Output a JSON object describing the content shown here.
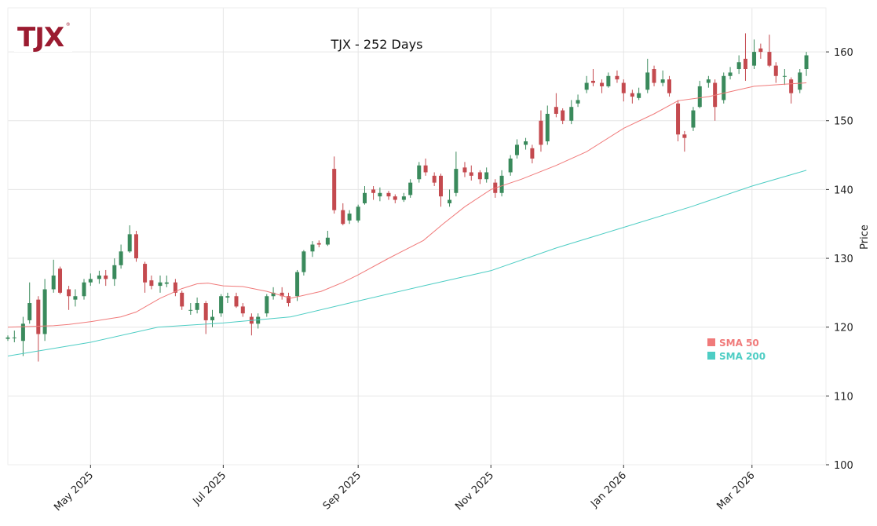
{
  "logo": {
    "text": "TJX",
    "mark": "®",
    "color": "#9b1b30"
  },
  "chart_data": {
    "type": "candlestick",
    "title": "TJX - 252 Days",
    "xlabel": "",
    "ylabel": "Price",
    "ylim": [
      100,
      166.4
    ],
    "xlim": [
      "2025-03-24",
      "2026-04-04"
    ],
    "yticks": [
      100,
      110,
      120,
      130,
      140,
      150,
      160
    ],
    "xticks": [
      {
        "date": "2025-05-01",
        "label": "May 2025"
      },
      {
        "date": "2025-07-01",
        "label": "Jul 2025"
      },
      {
        "date": "2025-09-01",
        "label": "Sep 2025"
      },
      {
        "date": "2025-11-01",
        "label": "Nov 2025"
      },
      {
        "date": "2026-01-01",
        "label": "Jan 2026"
      },
      {
        "date": "2026-03-01",
        "label": "Mar 2026"
      }
    ],
    "grid": true,
    "legend_placement": "lower-right",
    "colors": {
      "up": "#3a8a5c",
      "down": "#c44a4f",
      "sma50": "#f07a7a",
      "sma200": "#4ecdc4",
      "grid": "#e6e6e6"
    },
    "candles_fields": [
      "date",
      "open",
      "high",
      "low",
      "close"
    ],
    "candles": [
      [
        "2025-03-24",
        118.3,
        118.8,
        118,
        118.5
      ],
      [
        "2025-03-27",
        118.5,
        119.5,
        117.8,
        118.5
      ],
      [
        "2025-03-31",
        118,
        121.5,
        115.8,
        120.5
      ],
      [
        "2025-04-03",
        121,
        126.5,
        120.5,
        123.5
      ],
      [
        "2025-04-07",
        124,
        124.5,
        115,
        119
      ],
      [
        "2025-04-10",
        119,
        127,
        118,
        125.5
      ],
      [
        "2025-04-14",
        125.5,
        129.8,
        125,
        127.5
      ],
      [
        "2025-04-17",
        128.5,
        128.8,
        124.8,
        125
      ],
      [
        "2025-04-21",
        125.5,
        126,
        122.5,
        124.5
      ],
      [
        "2025-04-24",
        124,
        125.5,
        123,
        124.5
      ],
      [
        "2025-04-28",
        124.5,
        127,
        124,
        126.5
      ],
      [
        "2025-05-01",
        126.5,
        127.8,
        126,
        127
      ],
      [
        "2025-05-05",
        127,
        128.2,
        126.3,
        127.5
      ],
      [
        "2025-05-08",
        127.5,
        128.3,
        126,
        127
      ],
      [
        "2025-05-12",
        127,
        130,
        126,
        129
      ],
      [
        "2025-05-15",
        129,
        132,
        128.5,
        131
      ],
      [
        "2025-05-19",
        131,
        134.8,
        130.8,
        133.5
      ],
      [
        "2025-05-22",
        133.5,
        134,
        129.5,
        130
      ],
      [
        "2025-05-26",
        129.2,
        129.5,
        125,
        126.5
      ],
      [
        "2025-05-29",
        126.8,
        127.5,
        125.5,
        126
      ],
      [
        "2025-06-02",
        126,
        127.5,
        125,
        126.5
      ],
      [
        "2025-06-05",
        126.3,
        127.5,
        125.8,
        126.5
      ],
      [
        "2025-06-09",
        126.5,
        127,
        124.5,
        125
      ],
      [
        "2025-06-12",
        125,
        125.3,
        122.5,
        123
      ],
      [
        "2025-06-16",
        122.5,
        123.5,
        121.8,
        122.5
      ],
      [
        "2025-06-19",
        122.5,
        124.3,
        122,
        123.5
      ],
      [
        "2025-06-23",
        123.5,
        123.8,
        119,
        121
      ],
      [
        "2025-06-26",
        121,
        122.5,
        120,
        121.5
      ],
      [
        "2025-06-30",
        122,
        124.8,
        121.5,
        124.5
      ],
      [
        "2025-07-03",
        124.3,
        125,
        123.5,
        124.5
      ],
      [
        "2025-07-07",
        124.5,
        125,
        122.8,
        123
      ],
      [
        "2025-07-10",
        123,
        123.5,
        121.5,
        122
      ],
      [
        "2025-07-14",
        121.5,
        122,
        118.8,
        120.5
      ],
      [
        "2025-07-17",
        120.5,
        122,
        119.8,
        121.5
      ],
      [
        "2025-07-21",
        122,
        124.8,
        121.5,
        124.5
      ],
      [
        "2025-07-24",
        124.5,
        125.8,
        124,
        125
      ],
      [
        "2025-07-28",
        125,
        125.8,
        124,
        124.5
      ],
      [
        "2025-07-31",
        124.5,
        125,
        123,
        123.5
      ],
      [
        "2025-08-04",
        124.5,
        128.3,
        123.8,
        128
      ],
      [
        "2025-08-07",
        128,
        131.2,
        127.5,
        131
      ],
      [
        "2025-08-11",
        131,
        132.5,
        130.2,
        132
      ],
      [
        "2025-08-14",
        132.2,
        132.6,
        131.6,
        132
      ],
      [
        "2025-08-18",
        132,
        134,
        131.8,
        133
      ],
      [
        "2025-08-21",
        143,
        144.8,
        136.5,
        137
      ],
      [
        "2025-08-25",
        137,
        138,
        134.8,
        135
      ],
      [
        "2025-08-28",
        135.5,
        137,
        135,
        136.5
      ],
      [
        "2025-09-01",
        135.5,
        137.8,
        135.2,
        137.5
      ],
      [
        "2025-09-04",
        138,
        140.5,
        137.8,
        139.5
      ],
      [
        "2025-09-08",
        140,
        140.5,
        138.5,
        139.5
      ],
      [
        "2025-09-11",
        139,
        140.3,
        138.3,
        139.5
      ],
      [
        "2025-09-15",
        139.5,
        139.8,
        138.5,
        139
      ],
      [
        "2025-09-18",
        139,
        139.3,
        138,
        138.5
      ],
      [
        "2025-09-22",
        138.5,
        139.5,
        138.2,
        139
      ],
      [
        "2025-09-25",
        139.2,
        141.5,
        138.8,
        141
      ],
      [
        "2025-09-29",
        141.5,
        144,
        141,
        143.5
      ],
      [
        "2025-10-02",
        143.5,
        144.5,
        142,
        142.5
      ],
      [
        "2025-10-06",
        142,
        142.5,
        140.5,
        141
      ],
      [
        "2025-10-09",
        142,
        142.3,
        137.5,
        139
      ],
      [
        "2025-10-13",
        138,
        140,
        137.5,
        138.5
      ],
      [
        "2025-10-16",
        139.5,
        145.5,
        139,
        143
      ],
      [
        "2025-10-20",
        143.2,
        144,
        141.8,
        142.5
      ],
      [
        "2025-10-23",
        142.5,
        143.5,
        141.3,
        142
      ],
      [
        "2025-10-27",
        142.5,
        142.8,
        140.8,
        141.5
      ],
      [
        "2025-10-30",
        141.5,
        143.2,
        141,
        142.5
      ],
      [
        "2025-11-03",
        141,
        141.5,
        138.8,
        139.5
      ],
      [
        "2025-11-06",
        139.5,
        142.8,
        139,
        142
      ],
      [
        "2025-11-10",
        142.5,
        145,
        142,
        144.5
      ],
      [
        "2025-11-13",
        145,
        147.3,
        144.5,
        146.5
      ],
      [
        "2025-11-17",
        146.5,
        147.5,
        145.8,
        147
      ],
      [
        "2025-11-20",
        146,
        146.5,
        143.8,
        144.5
      ],
      [
        "2025-11-24",
        150,
        151.5,
        145.5,
        146.5
      ],
      [
        "2025-11-27",
        147,
        152.2,
        146.5,
        151
      ],
      [
        "2025-12-01",
        152,
        154,
        150.5,
        151
      ],
      [
        "2025-12-04",
        151.5,
        151.8,
        149.5,
        150
      ],
      [
        "2025-12-08",
        150,
        153,
        149.5,
        152
      ],
      [
        "2025-12-11",
        152.5,
        153.8,
        152,
        153
      ],
      [
        "2025-12-15",
        154.5,
        156.5,
        154,
        155.5
      ],
      [
        "2025-12-18",
        155.8,
        157.5,
        155,
        155.5
      ],
      [
        "2025-12-22",
        155.5,
        156,
        154,
        155
      ],
      [
        "2025-12-25",
        155,
        157,
        154.8,
        156.5
      ],
      [
        "2025-12-29",
        156.5,
        157.3,
        155.5,
        156
      ],
      [
        "2026-01-01",
        155.5,
        156,
        152.8,
        154
      ],
      [
        "2026-01-05",
        154,
        154.5,
        152.5,
        153.5
      ],
      [
        "2026-01-08",
        153.3,
        154.8,
        153,
        154
      ],
      [
        "2026-01-12",
        154.5,
        159,
        154,
        157
      ],
      [
        "2026-01-15",
        157.5,
        158,
        155,
        155.5
      ],
      [
        "2026-01-19",
        155.5,
        157.3,
        155,
        156
      ],
      [
        "2026-01-22",
        156,
        156.5,
        153.5,
        154
      ],
      [
        "2026-01-26",
        152.5,
        153,
        147,
        148
      ],
      [
        "2026-01-29",
        148,
        148.5,
        145.5,
        147.5
      ],
      [
        "2026-02-02",
        149,
        152,
        148.5,
        151.5
      ],
      [
        "2026-02-05",
        152,
        155.8,
        151.8,
        155
      ],
      [
        "2026-02-09",
        155.5,
        156.5,
        154.8,
        156
      ],
      [
        "2026-02-12",
        155.5,
        156,
        150,
        152
      ],
      [
        "2026-02-16",
        153,
        157,
        152.5,
        156.5
      ],
      [
        "2026-02-19",
        156.5,
        157.8,
        156,
        157
      ],
      [
        "2026-02-23",
        157.5,
        159.5,
        156.8,
        158.5
      ],
      [
        "2026-02-26",
        159,
        162.7,
        155.8,
        157.5
      ],
      [
        "2026-03-02",
        158,
        161.8,
        157.5,
        160
      ],
      [
        "2026-03-05",
        160.5,
        161.2,
        159,
        160
      ],
      [
        "2026-03-09",
        160,
        162.5,
        157.8,
        158
      ],
      [
        "2026-03-12",
        158,
        158.5,
        155.5,
        156.5
      ],
      [
        "2026-03-16",
        156.5,
        157.5,
        155.2,
        156.5
      ],
      [
        "2026-03-19",
        156,
        156.3,
        152.5,
        154
      ],
      [
        "2026-03-23",
        154.5,
        157.5,
        154,
        157
      ],
      [
        "2026-03-26",
        157.5,
        160,
        156.5,
        159.5
      ]
    ],
    "series": [
      {
        "name": "SMA 50",
        "color": "#f07a7a",
        "points": [
          [
            "2025-03-24",
            120
          ],
          [
            "2025-04-14",
            120.2
          ],
          [
            "2025-04-21",
            120.4
          ],
          [
            "2025-05-01",
            120.8
          ],
          [
            "2025-05-15",
            121.5
          ],
          [
            "2025-05-22",
            122.2
          ],
          [
            "2025-06-02",
            124.2
          ],
          [
            "2025-06-12",
            125.6
          ],
          [
            "2025-06-19",
            126.3
          ],
          [
            "2025-06-24",
            126.4
          ],
          [
            "2025-07-01",
            126
          ],
          [
            "2025-07-10",
            125.9
          ],
          [
            "2025-07-21",
            125.2
          ],
          [
            "2025-08-01",
            124.2
          ],
          [
            "2025-08-15",
            125.2
          ],
          [
            "2025-08-25",
            126.5
          ],
          [
            "2025-09-01",
            127.6
          ],
          [
            "2025-09-15",
            130
          ],
          [
            "2025-10-01",
            132.6
          ],
          [
            "2025-10-10",
            135
          ],
          [
            "2025-10-20",
            137.5
          ],
          [
            "2025-11-01",
            140
          ],
          [
            "2025-11-15",
            141.5
          ],
          [
            "2025-12-01",
            143.5
          ],
          [
            "2025-12-15",
            145.5
          ],
          [
            "2026-01-01",
            148.9
          ],
          [
            "2026-01-15",
            151
          ],
          [
            "2026-01-26",
            152.9
          ],
          [
            "2026-02-09",
            153.5
          ],
          [
            "2026-02-23",
            154.5
          ],
          [
            "2026-03-02",
            155
          ],
          [
            "2026-03-16",
            155.3
          ],
          [
            "2026-03-26",
            155.5
          ]
        ]
      },
      {
        "name": "SMA 200",
        "color": "#4ecdc4",
        "points": [
          [
            "2025-03-24",
            115.8
          ],
          [
            "2025-05-01",
            117.8
          ],
          [
            "2025-06-01",
            120
          ],
          [
            "2025-07-01",
            120.6
          ],
          [
            "2025-08-01",
            121.5
          ],
          [
            "2025-09-01",
            123.8
          ],
          [
            "2025-10-01",
            126
          ],
          [
            "2025-11-01",
            128.2
          ],
          [
            "2025-12-01",
            131.5
          ],
          [
            "2026-01-01",
            134.5
          ],
          [
            "2026-02-01",
            137.5
          ],
          [
            "2026-03-01",
            140.5
          ],
          [
            "2026-03-26",
            142.8
          ]
        ]
      }
    ]
  }
}
